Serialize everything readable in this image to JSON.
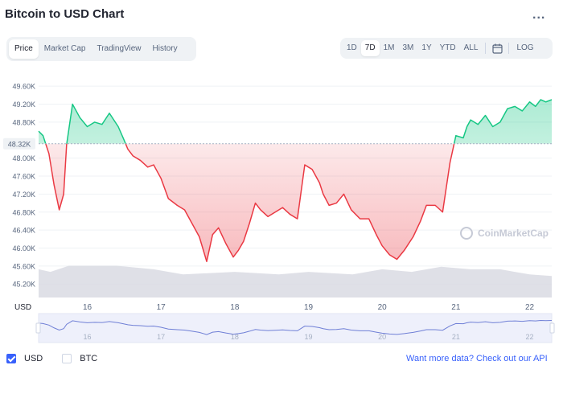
{
  "header": {
    "title": "Bitcoin to USD Chart",
    "more_label": "..."
  },
  "tabs": [
    {
      "label": "Price",
      "active": true
    },
    {
      "label": "Market Cap",
      "active": false
    },
    {
      "label": "TradingView",
      "active": false
    },
    {
      "label": "History",
      "active": false
    }
  ],
  "ranges": [
    {
      "label": "1D",
      "active": false
    },
    {
      "label": "7D",
      "active": true
    },
    {
      "label": "1M",
      "active": false
    },
    {
      "label": "3M",
      "active": false
    },
    {
      "label": "1Y",
      "active": false
    },
    {
      "label": "YTD",
      "active": false
    },
    {
      "label": "ALL",
      "active": false
    }
  ],
  "calendar_icon": "calendar-icon",
  "log_label": "LOG",
  "watermark": "CoinMarketCap",
  "legend": {
    "usd": {
      "label": "USD",
      "checked": true
    },
    "btc": {
      "label": "BTC",
      "checked": false
    }
  },
  "api_link": "Want more data? Check out our API",
  "colors": {
    "up": "#16c784",
    "down": "#ea3943",
    "accent": "#3861fb",
    "volume": "#d9dbe3"
  },
  "chart_data": {
    "type": "area",
    "title": "",
    "xlabel": "",
    "ylabel": "USD",
    "ylim": [
      44900,
      49800
    ],
    "y_ticks": [
      49600,
      49200,
      48800,
      48000,
      47600,
      47200,
      46800,
      46400,
      46000,
      45600,
      45200
    ],
    "y_tick_labels": [
      "49.60K",
      "49.20K",
      "48.80K",
      "48.00K",
      "47.60K",
      "47.20K",
      "46.80K",
      "46.40K",
      "46.00K",
      "45.60K",
      "45.20K"
    ],
    "x_ticks": [
      16,
      17,
      18,
      19,
      20,
      21,
      22
    ],
    "x_tick_labels": [
      "16",
      "17",
      "18",
      "19",
      "20",
      "21",
      "22"
    ],
    "xlim": [
      15.34,
      22.3
    ],
    "reference_line": {
      "value": 48320,
      "label": "48.32K"
    },
    "series": [
      {
        "x": [
          15.34,
          15.4,
          15.48,
          15.55,
          15.62,
          15.68,
          15.72,
          15.8,
          15.9,
          16.0,
          16.1,
          16.2,
          16.3,
          16.42,
          16.5,
          16.55,
          16.62,
          16.72,
          16.82,
          16.9,
          17.0,
          17.1,
          17.22,
          17.32,
          17.42,
          17.52,
          17.62,
          17.7,
          17.78,
          17.88,
          17.98,
          18.05,
          18.12,
          18.2,
          18.28,
          18.35,
          18.45,
          18.55,
          18.65,
          18.75,
          18.85,
          18.95,
          19.05,
          19.15,
          19.2,
          19.28,
          19.38,
          19.48,
          19.58,
          19.7,
          19.82,
          19.92,
          20.0,
          20.1,
          20.2,
          20.3,
          20.42,
          20.52,
          20.6,
          20.72,
          20.82,
          20.92,
          21.0,
          21.1,
          21.15,
          21.2,
          21.3,
          21.4,
          21.5,
          21.6,
          21.7,
          21.8,
          21.9,
          22.0,
          22.08,
          22.15,
          22.22,
          22.3
        ],
        "y": [
          48600,
          48500,
          48100,
          47400,
          46850,
          47200,
          48300,
          49200,
          48900,
          48700,
          48800,
          48750,
          49000,
          48700,
          48400,
          48200,
          48050,
          47950,
          47800,
          47850,
          47550,
          47100,
          46950,
          46850,
          46550,
          46250,
          45700,
          46300,
          46450,
          46100,
          45800,
          45950,
          46150,
          46550,
          47000,
          46850,
          46700,
          46800,
          46900,
          46750,
          46650,
          47850,
          47750,
          47450,
          47200,
          46950,
          47000,
          47200,
          46850,
          46650,
          46650,
          46300,
          46050,
          45850,
          45750,
          45950,
          46250,
          46600,
          46950,
          46950,
          46800,
          47900,
          48500,
          48450,
          48700,
          48850,
          48750,
          48950,
          48700,
          48800,
          49100,
          49150,
          49050,
          49250,
          49150,
          49300,
          49250,
          49300
        ]
      }
    ],
    "volume_x": [
      15.34,
      15.5,
      15.75,
      16.4,
      16.9,
      17.3,
      18.0,
      18.6,
      19.0,
      19.6,
      20.0,
      20.4,
      20.8,
      21.2,
      21.6,
      22.0,
      22.3
    ],
    "volume_y": [
      0.55,
      0.5,
      0.62,
      0.62,
      0.55,
      0.45,
      0.5,
      0.45,
      0.5,
      0.45,
      0.55,
      0.5,
      0.6,
      0.55,
      0.55,
      0.45,
      0.42
    ],
    "grid": true,
    "legend": "bottom-left"
  }
}
